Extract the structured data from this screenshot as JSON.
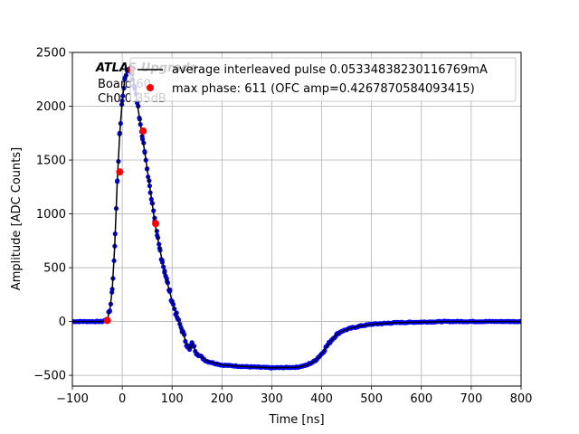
{
  "chart_data": {
    "type": "scatter",
    "xlabel": "Time [ns]",
    "ylabel": "Amplitude [ADC Counts]",
    "xlim": [
      -100,
      800
    ],
    "ylim": [
      -600,
      2500
    ],
    "x_ticks": [
      "−100",
      "0",
      "100",
      "200",
      "300",
      "400",
      "500",
      "600",
      "700",
      "800"
    ],
    "x_tick_values": [
      -100,
      0,
      100,
      200,
      300,
      400,
      500,
      600,
      700,
      800
    ],
    "y_ticks": [
      "−500",
      "0",
      "500",
      "1000",
      "1500",
      "2000",
      "2500"
    ],
    "y_tick_values": [
      -500,
      0,
      500,
      1000,
      1500,
      2000,
      2500
    ],
    "grid": true,
    "legend_placement": "top-right",
    "annotation": {
      "line1": "ATLAS Upgrade",
      "line2": "Board 60",
      "line3": "Ch0 0.35dB"
    },
    "series": [
      {
        "name": "average interleaved pulse 0.05334838230116769mA",
        "kind": "line",
        "color": "#000000",
        "x": [
          -100,
          -40,
          -30,
          -25,
          -20,
          -15,
          -10,
          -5,
          0,
          5,
          10,
          15,
          20,
          25,
          30,
          35,
          40,
          45,
          50,
          55,
          60,
          65,
          70,
          75,
          80,
          85,
          90,
          95,
          100,
          110,
          120,
          130,
          135,
          140,
          150,
          170,
          200,
          250,
          300,
          350,
          370,
          385,
          400,
          410,
          420,
          430,
          440,
          460,
          480,
          500,
          550,
          600,
          650,
          700,
          800
        ],
        "y": [
          0,
          0,
          20,
          100,
          300,
          700,
          1300,
          1750,
          2050,
          2250,
          2330,
          2350,
          2300,
          2180,
          2030,
          1880,
          1720,
          1580,
          1420,
          1260,
          1100,
          930,
          800,
          680,
          570,
          470,
          370,
          280,
          190,
          40,
          -80,
          -220,
          -260,
          -200,
          -300,
          -370,
          -405,
          -420,
          -430,
          -425,
          -405,
          -370,
          -300,
          -230,
          -170,
          -120,
          -90,
          -60,
          -40,
          -25,
          -10,
          -5,
          0,
          0,
          0
        ]
      },
      {
        "name": "",
        "kind": "scatter",
        "color": "#0000ff",
        "x": [
          -100,
          -40,
          -30,
          -25,
          -20,
          -15,
          -10,
          -5,
          0,
          5,
          10,
          15,
          20,
          25,
          30,
          35,
          40,
          45,
          50,
          55,
          60,
          65,
          70,
          75,
          80,
          85,
          90,
          95,
          100,
          110,
          120,
          130,
          135,
          140,
          150,
          170,
          200,
          250,
          300,
          350,
          370,
          385,
          400,
          410,
          420,
          430,
          440,
          460,
          480,
          500,
          550,
          600,
          650,
          700,
          800
        ],
        "y": [
          0,
          0,
          20,
          100,
          300,
          700,
          1300,
          1750,
          2050,
          2250,
          2330,
          2350,
          2300,
          2180,
          2030,
          1880,
          1720,
          1580,
          1420,
          1260,
          1100,
          930,
          800,
          680,
          570,
          470,
          370,
          280,
          190,
          40,
          -80,
          -220,
          -260,
          -200,
          -300,
          -370,
          -405,
          -420,
          -430,
          -425,
          -405,
          -370,
          -300,
          -230,
          -170,
          -120,
          -90,
          -60,
          -40,
          -25,
          -10,
          -5,
          0,
          0,
          0
        ]
      },
      {
        "name": "max phase: 611 (OFC amp=0.4267870584093415)",
        "kind": "scatter",
        "color": "#ff0000",
        "x": [
          -30,
          -5,
          18,
          42,
          67
        ],
        "y": [
          10,
          1390,
          2340,
          1770,
          910
        ]
      }
    ]
  }
}
